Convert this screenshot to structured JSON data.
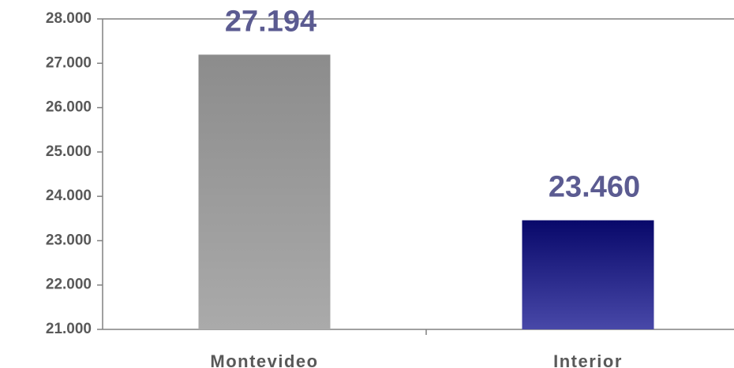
{
  "chart_data": {
    "type": "bar",
    "categories": [
      "Montevideo",
      "Interior"
    ],
    "values": [
      27194,
      23460
    ],
    "value_labels": [
      "27.194",
      "23.460"
    ],
    "colors": [
      [
        "#8c8c8c",
        "#aaaaaa"
      ],
      [
        "#08086a",
        "#4848a8"
      ]
    ],
    "ylim": [
      21000,
      28000
    ],
    "yticks": [
      {
        "value": 21000,
        "label": "21.000"
      },
      {
        "value": 22000,
        "label": "22.000"
      },
      {
        "value": 23000,
        "label": "23.000"
      },
      {
        "value": 24000,
        "label": "24.000"
      },
      {
        "value": 25000,
        "label": "25.000"
      },
      {
        "value": 26000,
        "label": "26.000"
      },
      {
        "value": 27000,
        "label": "27.000"
      },
      {
        "value": 28000,
        "label": "28.000"
      }
    ],
    "grid": false
  }
}
